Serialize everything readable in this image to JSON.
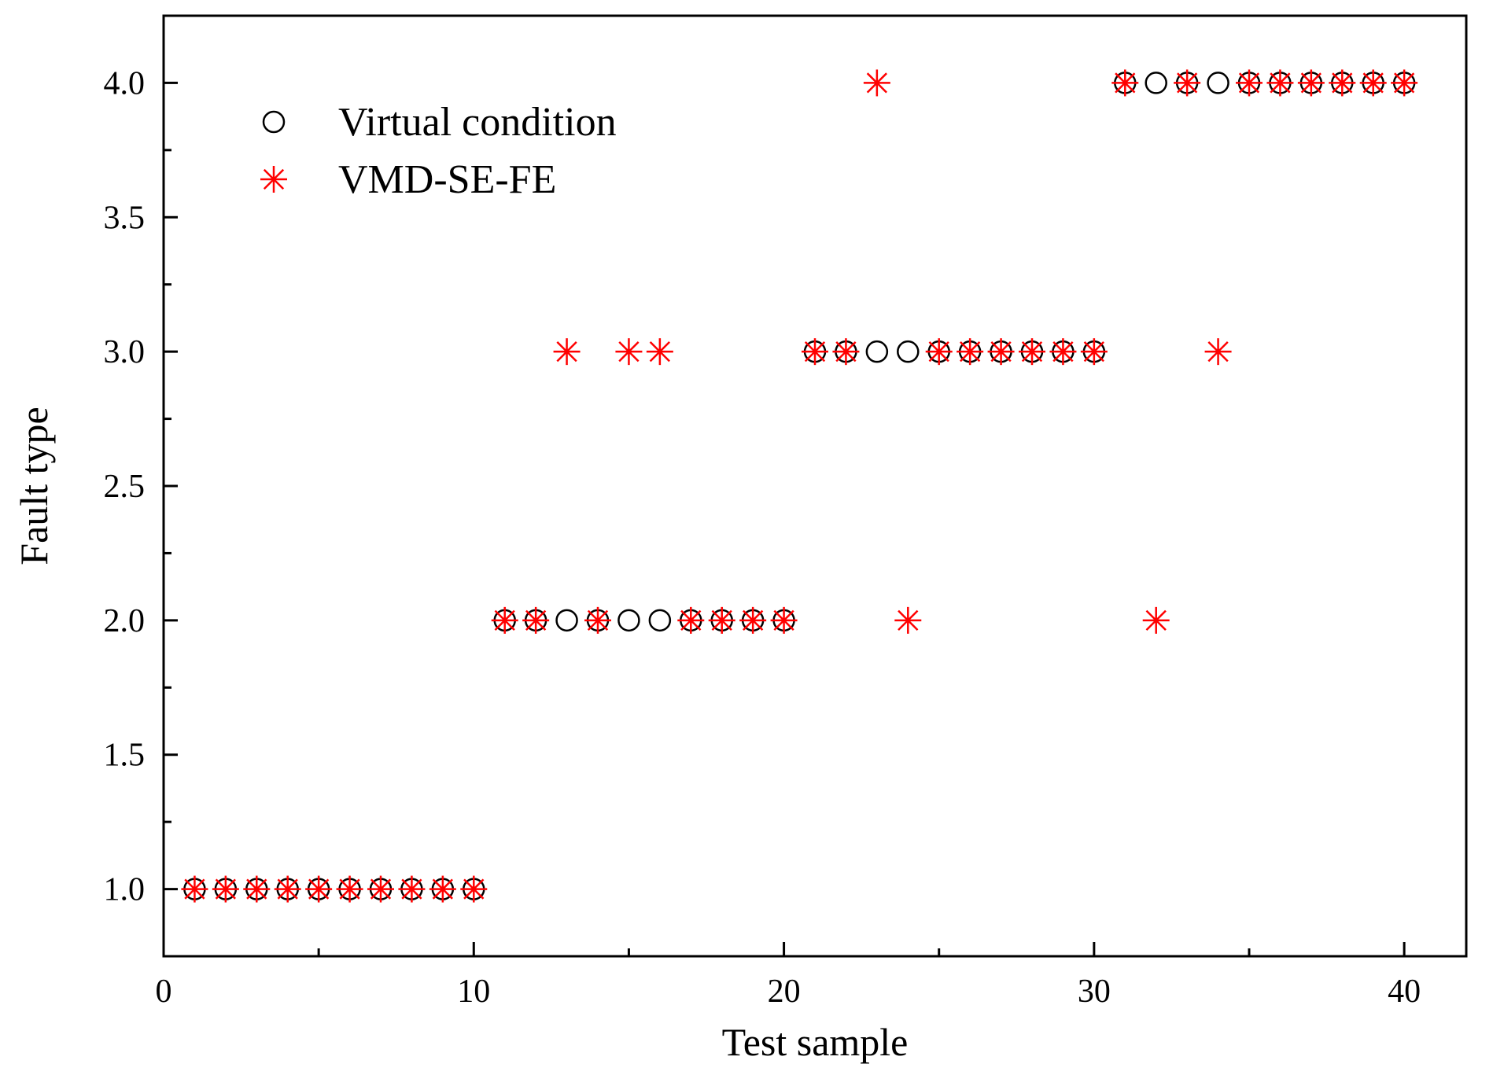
{
  "chart_data": {
    "type": "scatter",
    "title": "",
    "xlabel": "Test sample",
    "ylabel": "Fault type",
    "xlim": [
      0,
      42
    ],
    "ylim": [
      0.75,
      4.25
    ],
    "xticks": [
      0,
      10,
      20,
      30,
      40
    ],
    "xtick_labels": [
      "0",
      "10",
      "20",
      "30",
      "40"
    ],
    "yticks": [
      1.0,
      1.5,
      2.0,
      2.5,
      3.0,
      3.5,
      4.0
    ],
    "ytick_labels": [
      "1.0",
      "1.5",
      "2.0",
      "2.5",
      "3.0",
      "3.5",
      "4.0"
    ],
    "grid": false,
    "legend_position": "top-left",
    "x": [
      1,
      2,
      3,
      4,
      5,
      6,
      7,
      8,
      9,
      10,
      11,
      12,
      13,
      14,
      15,
      16,
      17,
      18,
      19,
      20,
      21,
      22,
      23,
      24,
      25,
      26,
      27,
      28,
      29,
      30,
      31,
      32,
      33,
      34,
      35,
      36,
      37,
      38,
      39,
      40
    ],
    "series": [
      {
        "name": "Virtual condition",
        "marker": "circle",
        "color": "#000000",
        "values": [
          1,
          1,
          1,
          1,
          1,
          1,
          1,
          1,
          1,
          1,
          2,
          2,
          2,
          2,
          2,
          2,
          2,
          2,
          2,
          2,
          3,
          3,
          3,
          3,
          3,
          3,
          3,
          3,
          3,
          3,
          4,
          4,
          4,
          4,
          4,
          4,
          4,
          4,
          4,
          4
        ]
      },
      {
        "name": "VMD-SE-FE",
        "marker": "asterisk",
        "color": "#ff0000",
        "values": [
          1,
          1,
          1,
          1,
          1,
          1,
          1,
          1,
          1,
          1,
          2,
          2,
          3,
          2,
          3,
          3,
          2,
          2,
          2,
          2,
          3,
          3,
          4,
          2,
          3,
          3,
          3,
          3,
          3,
          3,
          4,
          2,
          4,
          3,
          4,
          4,
          4,
          4,
          4,
          4
        ]
      }
    ]
  }
}
